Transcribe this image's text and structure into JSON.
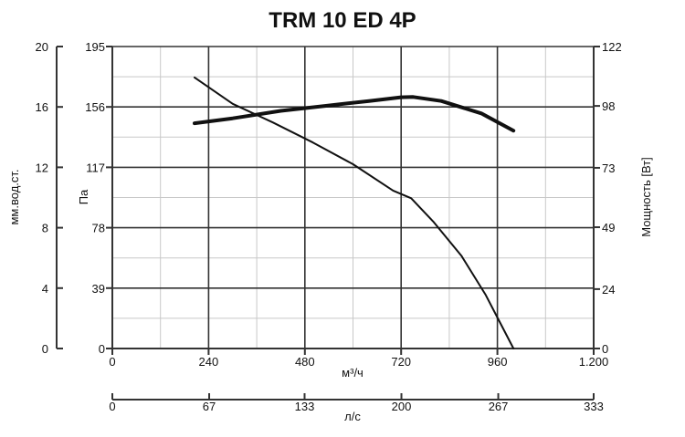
{
  "chart_data": {
    "type": "line",
    "title": "TRM 10 ED 4P",
    "x_axis": {
      "label": "м³/ч",
      "range": [
        0,
        1200
      ],
      "ticks": [
        0,
        240,
        480,
        720,
        960,
        1200
      ],
      "tick_labels": [
        "0",
        "240",
        "480",
        "720",
        "960",
        "1.200"
      ]
    },
    "x2_axis": {
      "label": "л/с",
      "range": [
        0,
        333
      ],
      "ticks": [
        0,
        67,
        133,
        200,
        267,
        333
      ],
      "tick_labels": [
        "0",
        "67",
        "133",
        "200",
        "267",
        "333"
      ]
    },
    "y_axis": {
      "label": "Па",
      "range": [
        0,
        195
      ],
      "ticks": [
        0,
        39,
        78,
        117,
        156,
        195
      ],
      "tick_labels": [
        "0",
        "39",
        "78",
        "117",
        "156",
        "195"
      ]
    },
    "y_outer_axis": {
      "label": "мм.вод.ст.",
      "range": [
        0,
        20
      ],
      "ticks": [
        0,
        4,
        8,
        12,
        16,
        20
      ],
      "tick_labels": [
        "0",
        "4",
        "8",
        "12",
        "16",
        "20"
      ]
    },
    "y_right_axis": {
      "label": "Мощность [Вт]",
      "range": [
        0,
        122
      ],
      "ticks": [
        0,
        24,
        49,
        73,
        98,
        122
      ],
      "tick_labels": [
        "0",
        "24",
        "49",
        "73",
        "98",
        "122"
      ]
    },
    "grid": true,
    "series": [
      {
        "axis": "left",
        "color": "#111111",
        "points": [
          [
            205,
            175
          ],
          [
            300,
            158
          ],
          [
            400,
            146
          ],
          [
            500,
            133
          ],
          [
            600,
            119
          ],
          [
            700,
            102
          ],
          [
            745,
            97
          ],
          [
            800,
            82
          ],
          [
            870,
            60
          ],
          [
            930,
            35
          ],
          [
            970,
            15
          ],
          [
            1000,
            0
          ]
        ]
      },
      {
        "axis": "right",
        "color": "#111111",
        "points": [
          [
            205,
            91
          ],
          [
            300,
            93
          ],
          [
            420,
            96
          ],
          [
            530,
            98
          ],
          [
            640,
            100
          ],
          [
            720,
            101.5
          ],
          [
            750,
            101.6
          ],
          [
            820,
            100
          ],
          [
            920,
            95
          ],
          [
            1000,
            88
          ]
        ]
      }
    ]
  }
}
